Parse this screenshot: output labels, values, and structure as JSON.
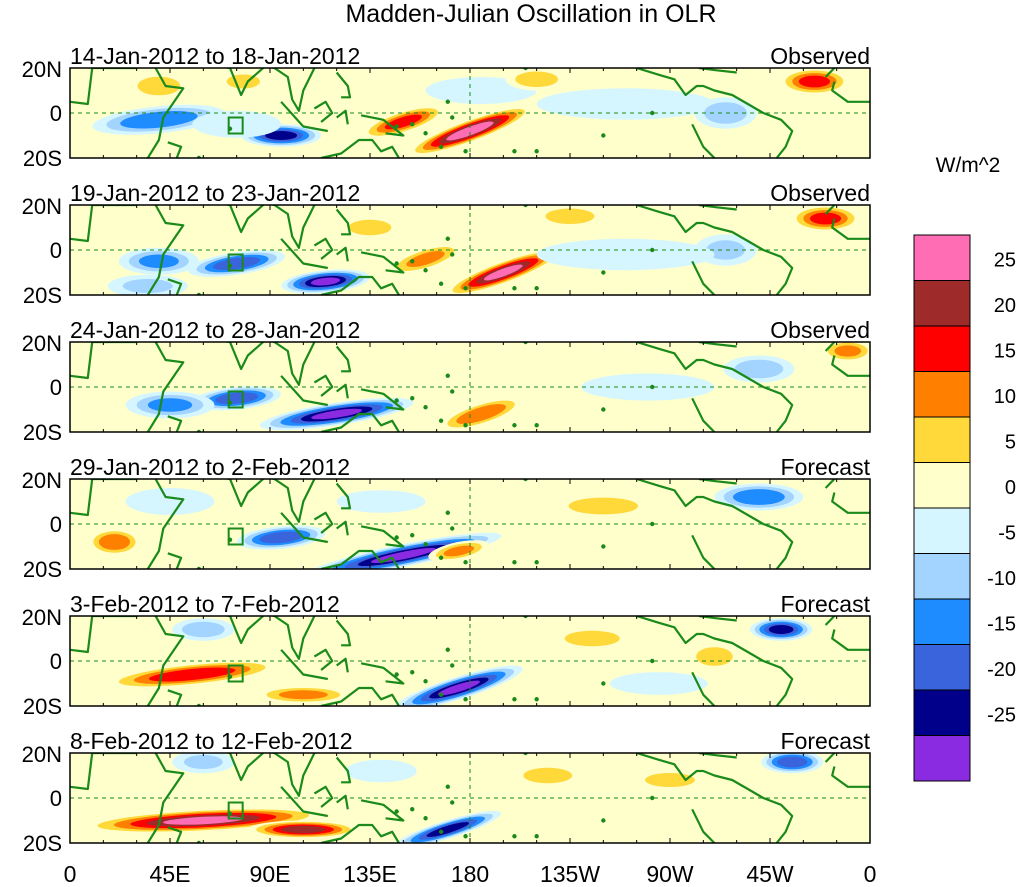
{
  "title": "Madden-Julian Oscillation in OLR",
  "units_label": "W/m^2",
  "lat_labels": [
    "20N",
    "0",
    "20S"
  ],
  "lon_labels": [
    "0",
    "45E",
    "90E",
    "135E",
    "180",
    "135W",
    "90W",
    "45W",
    "0"
  ],
  "panels": [
    {
      "date_range": "14-Jan-2012 to 18-Jan-2012",
      "status": "Observed"
    },
    {
      "date_range": "19-Jan-2012 to 23-Jan-2012",
      "status": "Observed"
    },
    {
      "date_range": "24-Jan-2012 to 28-Jan-2012",
      "status": "Observed"
    },
    {
      "date_range": "29-Jan-2012 to 2-Feb-2012",
      "status": "Forecast"
    },
    {
      "date_range": "3-Feb-2012 to 7-Feb-2012",
      "status": "Forecast"
    },
    {
      "date_range": "8-Feb-2012 to 12-Feb-2012",
      "status": "Forecast"
    }
  ],
  "colorbar": {
    "labels": [
      "25",
      "20",
      "15",
      "10",
      "5",
      "0",
      "-5",
      "-10",
      "-15",
      "-20",
      "-25"
    ],
    "colors": [
      "#ff6eb4",
      "#9e2a2a",
      "#ff0000",
      "#ff7f00",
      "#ffd83a",
      "#ffffcc",
      "#d6f6ff",
      "#a3d4ff",
      "#1e8cff",
      "#3a64dc",
      "#00008b",
      "#8a2be2"
    ]
  },
  "colors": {
    "land_outline": "#1a8a1a",
    "frame": "#000000",
    "reference_line": "#1a8a1a"
  },
  "chart_data": {
    "type": "heatmap",
    "title": "Madden-Julian Oscillation in OLR",
    "variable": "OLR anomaly",
    "units": "W/m^2",
    "levels": [
      -25,
      -20,
      -15,
      -10,
      -5,
      0,
      5,
      10,
      15,
      20,
      25
    ],
    "lat_range": [
      -20,
      20
    ],
    "lon_range": [
      0,
      360
    ],
    "anomaly_features": [
      [
        {
          "lon": 180,
          "lat": -8,
          "value": 30,
          "dx": 30,
          "dy": 5,
          "tilt": 0.35
        },
        {
          "lon": 150,
          "lat": -4,
          "value": 20,
          "dx": 20,
          "dy": 5,
          "tilt": 0.3
        },
        {
          "lon": 95,
          "lat": -10,
          "value": -25,
          "dx": 18,
          "dy": 5,
          "tilt": 0
        },
        {
          "lon": 40,
          "lat": -3,
          "value": -18,
          "dx": 30,
          "dy": 6,
          "tilt": 0.1
        },
        {
          "lon": 75,
          "lat": -5,
          "value": -8,
          "dx": 20,
          "dy": 6,
          "tilt": 0
        },
        {
          "lon": 40,
          "lat": 12,
          "value": 12,
          "dx": 14,
          "dy": 6,
          "tilt": 0
        },
        {
          "lon": 78,
          "lat": 14,
          "value": 10,
          "dx": 12,
          "dy": 5,
          "tilt": 0
        },
        {
          "lon": 185,
          "lat": 10,
          "value": -8,
          "dx": 25,
          "dy": 6,
          "tilt": 0
        },
        {
          "lon": 250,
          "lat": 4,
          "value": -6,
          "dx": 40,
          "dy": 7,
          "tilt": 0
        },
        {
          "lon": 295,
          "lat": 0,
          "value": -12,
          "dx": 14,
          "dy": 7,
          "tilt": 0
        },
        {
          "lon": 335,
          "lat": 14,
          "value": 20,
          "dx": 16,
          "dy": 6,
          "tilt": 0
        },
        {
          "lon": 210,
          "lat": 15,
          "value": 12,
          "dx": 14,
          "dy": 5,
          "tilt": 0
        },
        {
          "lon": 300,
          "lat": -12,
          "value": 8,
          "dx": 12,
          "dy": 5,
          "tilt": 0
        }
      ],
      [
        {
          "lon": 195,
          "lat": -10,
          "value": 28,
          "dx": 28,
          "dy": 5,
          "tilt": 0.35
        },
        {
          "lon": 160,
          "lat": -4,
          "value": 15,
          "dx": 18,
          "dy": 5,
          "tilt": 0.3
        },
        {
          "lon": 40,
          "lat": -5,
          "value": -15,
          "dx": 18,
          "dy": 6,
          "tilt": 0
        },
        {
          "lon": 75,
          "lat": -6,
          "value": -22,
          "dx": 22,
          "dy": 5,
          "tilt": 0.15
        },
        {
          "lon": 115,
          "lat": -14,
          "value": -28,
          "dx": 20,
          "dy": 5,
          "tilt": 0.1
        },
        {
          "lon": 135,
          "lat": 10,
          "value": 12,
          "dx": 14,
          "dy": 5,
          "tilt": 0
        },
        {
          "lon": 35,
          "lat": -16,
          "value": -10,
          "dx": 18,
          "dy": 5,
          "tilt": 0
        },
        {
          "lon": 225,
          "lat": 15,
          "value": 12,
          "dx": 16,
          "dy": 5,
          "tilt": 0
        },
        {
          "lon": 340,
          "lat": 14,
          "value": 20,
          "dx": 16,
          "dy": 6,
          "tilt": 0
        },
        {
          "lon": 295,
          "lat": 0,
          "value": -10,
          "dx": 14,
          "dy": 7,
          "tilt": 0
        },
        {
          "lon": 250,
          "lat": -2,
          "value": -6,
          "dx": 40,
          "dy": 7,
          "tilt": 0
        },
        {
          "lon": 70,
          "lat": 14,
          "value": 6,
          "dx": 20,
          "dy": 5,
          "tilt": 0
        }
      ],
      [
        {
          "lon": 185,
          "lat": -12,
          "value": 18,
          "dx": 20,
          "dy": 5,
          "tilt": 0.3
        },
        {
          "lon": 120,
          "lat": -12,
          "value": -28,
          "dx": 35,
          "dy": 5,
          "tilt": 0.15
        },
        {
          "lon": 75,
          "lat": -5,
          "value": -22,
          "dx": 20,
          "dy": 5,
          "tilt": 0.1
        },
        {
          "lon": 45,
          "lat": -8,
          "value": -15,
          "dx": 20,
          "dy": 6,
          "tilt": 0
        },
        {
          "lon": 155,
          "lat": 8,
          "value": 8,
          "dx": 20,
          "dy": 6,
          "tilt": 0
        },
        {
          "lon": 25,
          "lat": 10,
          "value": 6,
          "dx": 20,
          "dy": 6,
          "tilt": 0
        },
        {
          "lon": 220,
          "lat": 5,
          "value": 8,
          "dx": 20,
          "dy": 6,
          "tilt": 0
        },
        {
          "lon": 310,
          "lat": 8,
          "value": -12,
          "dx": 16,
          "dy": 6,
          "tilt": 0
        },
        {
          "lon": 350,
          "lat": 16,
          "value": 15,
          "dx": 12,
          "dy": 5,
          "tilt": 0
        },
        {
          "lon": 260,
          "lat": 0,
          "value": -6,
          "dx": 30,
          "dy": 6,
          "tilt": 0
        }
      ],
      [
        {
          "lon": 150,
          "lat": -14,
          "value": -28,
          "dx": 45,
          "dy": 5,
          "tilt": 0.2
        },
        {
          "lon": 95,
          "lat": -6,
          "value": -22,
          "dx": 20,
          "dy": 5,
          "tilt": 0.1
        },
        {
          "lon": 20,
          "lat": -8,
          "value": 18,
          "dx": 12,
          "dy": 6,
          "tilt": 0
        },
        {
          "lon": 175,
          "lat": -12,
          "value": 15,
          "dx": 14,
          "dy": 4,
          "tilt": 0.2
        },
        {
          "lon": 240,
          "lat": 8,
          "value": 10,
          "dx": 25,
          "dy": 6,
          "tilt": 0
        },
        {
          "lon": 290,
          "lat": 0,
          "value": 8,
          "dx": 12,
          "dy": 6,
          "tilt": 0
        },
        {
          "lon": 310,
          "lat": 12,
          "value": -18,
          "dx": 20,
          "dy": 6,
          "tilt": 0
        },
        {
          "lon": 45,
          "lat": 10,
          "value": -8,
          "dx": 20,
          "dy": 6,
          "tilt": 0
        },
        {
          "lon": 140,
          "lat": 10,
          "value": -6,
          "dx": 20,
          "dy": 5,
          "tilt": 0
        },
        {
          "lon": 350,
          "lat": -5,
          "value": 6,
          "dx": 14,
          "dy": 6,
          "tilt": 0
        }
      ],
      [
        {
          "lon": 175,
          "lat": -12,
          "value": -28,
          "dx": 30,
          "dy": 5,
          "tilt": 0.3
        },
        {
          "lon": 55,
          "lat": -6,
          "value": 22,
          "dx": 40,
          "dy": 5,
          "tilt": 0.1
        },
        {
          "lon": 105,
          "lat": -15,
          "value": 15,
          "dx": 22,
          "dy": 4,
          "tilt": 0
        },
        {
          "lon": 320,
          "lat": 14,
          "value": -25,
          "dx": 14,
          "dy": 5,
          "tilt": 0
        },
        {
          "lon": 235,
          "lat": 10,
          "value": 12,
          "dx": 18,
          "dy": 5,
          "tilt": 0
        },
        {
          "lon": 290,
          "lat": 2,
          "value": 12,
          "dx": 12,
          "dy": 6,
          "tilt": 0
        },
        {
          "lon": 60,
          "lat": 14,
          "value": -12,
          "dx": 14,
          "dy": 5,
          "tilt": 0
        },
        {
          "lon": 150,
          "lat": 10,
          "value": 6,
          "dx": 16,
          "dy": 5,
          "tilt": 0
        },
        {
          "lon": 265,
          "lat": -10,
          "value": -6,
          "dx": 22,
          "dy": 5,
          "tilt": 0
        }
      ],
      [
        {
          "lon": 60,
          "lat": -10,
          "value": 28,
          "dx": 55,
          "dy": 5,
          "tilt": 0.05
        },
        {
          "lon": 105,
          "lat": -14,
          "value": 25,
          "dx": 25,
          "dy": 4,
          "tilt": 0
        },
        {
          "lon": 170,
          "lat": -14,
          "value": -25,
          "dx": 25,
          "dy": 4,
          "tilt": 0.3
        },
        {
          "lon": 325,
          "lat": 16,
          "value": -22,
          "dx": 14,
          "dy": 5,
          "tilt": 0
        },
        {
          "lon": 215,
          "lat": 10,
          "value": 12,
          "dx": 16,
          "dy": 5,
          "tilt": 0
        },
        {
          "lon": 270,
          "lat": 8,
          "value": 10,
          "dx": 18,
          "dy": 5,
          "tilt": 0
        },
        {
          "lon": 60,
          "lat": 16,
          "value": -10,
          "dx": 14,
          "dy": 5,
          "tilt": 0
        },
        {
          "lon": 140,
          "lat": 12,
          "value": -6,
          "dx": 16,
          "dy": 5,
          "tilt": 0
        },
        {
          "lon": 300,
          "lat": -8,
          "value": 8,
          "dx": 14,
          "dy": 5,
          "tilt": 0
        }
      ]
    ]
  }
}
